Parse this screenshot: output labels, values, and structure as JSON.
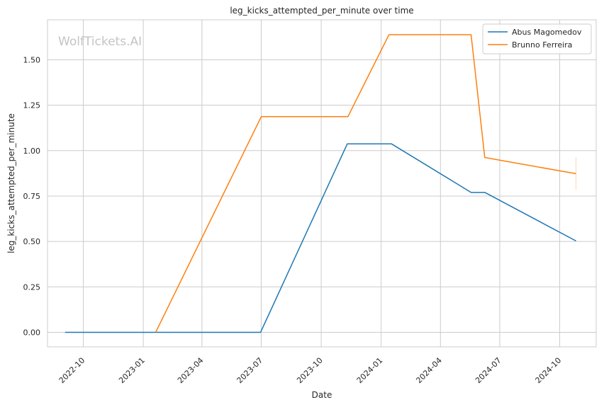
{
  "chart_data": {
    "type": "line",
    "title": "leg_kicks_attempted_per_minute over time",
    "xlabel": "Date",
    "ylabel": "leg_kicks_attempted_per_minute",
    "watermark": "WolfTickets.AI",
    "xlim": [
      "2022-08-07",
      "2024-11-26"
    ],
    "ylim": [
      -0.08,
      1.72
    ],
    "x_ticks": [
      "2022-10-01",
      "2023-01-01",
      "2023-04-01",
      "2023-07-01",
      "2023-10-01",
      "2024-01-01",
      "2024-04-01",
      "2024-07-01",
      "2024-10-01"
    ],
    "x_tick_labels": [
      "2022-10",
      "2023-01",
      "2023-04",
      "2023-07",
      "2023-10",
      "2024-01",
      "2024-04",
      "2024-07",
      "2024-10"
    ],
    "y_ticks": [
      0.0,
      0.25,
      0.5,
      0.75,
      1.0,
      1.25,
      1.5
    ],
    "y_tick_labels": [
      "0.00",
      "0.25",
      "0.50",
      "0.75",
      "1.00",
      "1.25",
      "1.50"
    ],
    "grid": true,
    "legend_position": "top-right",
    "series": [
      {
        "name": "Abus Magomedov",
        "color": "#1f77b4",
        "points": [
          {
            "x": "2022-09-03",
            "y": 0.0
          },
          {
            "x": "2023-06-30",
            "y": 0.0
          },
          {
            "x": "2023-11-10",
            "y": 1.037
          },
          {
            "x": "2024-01-17",
            "y": 1.037
          },
          {
            "x": "2024-05-18",
            "y": 0.77
          },
          {
            "x": "2024-06-08",
            "y": 0.77
          },
          {
            "x": "2024-10-26",
            "y": 0.503
          }
        ]
      },
      {
        "name": "Brunno Ferreira",
        "color": "#ff7f0e",
        "points": [
          {
            "x": "2023-01-20",
            "y": 0.0
          },
          {
            "x": "2023-07-01",
            "y": 1.187
          },
          {
            "x": "2023-11-11",
            "y": 1.187
          },
          {
            "x": "2024-01-13",
            "y": 1.638
          },
          {
            "x": "2024-05-18",
            "y": 1.638
          },
          {
            "x": "2024-06-08",
            "y": 0.962
          },
          {
            "x": "2024-10-26",
            "y": 0.873
          }
        ],
        "error_band": {
          "x": "2024-10-26",
          "low": 0.782,
          "high": 0.964
        }
      }
    ]
  }
}
